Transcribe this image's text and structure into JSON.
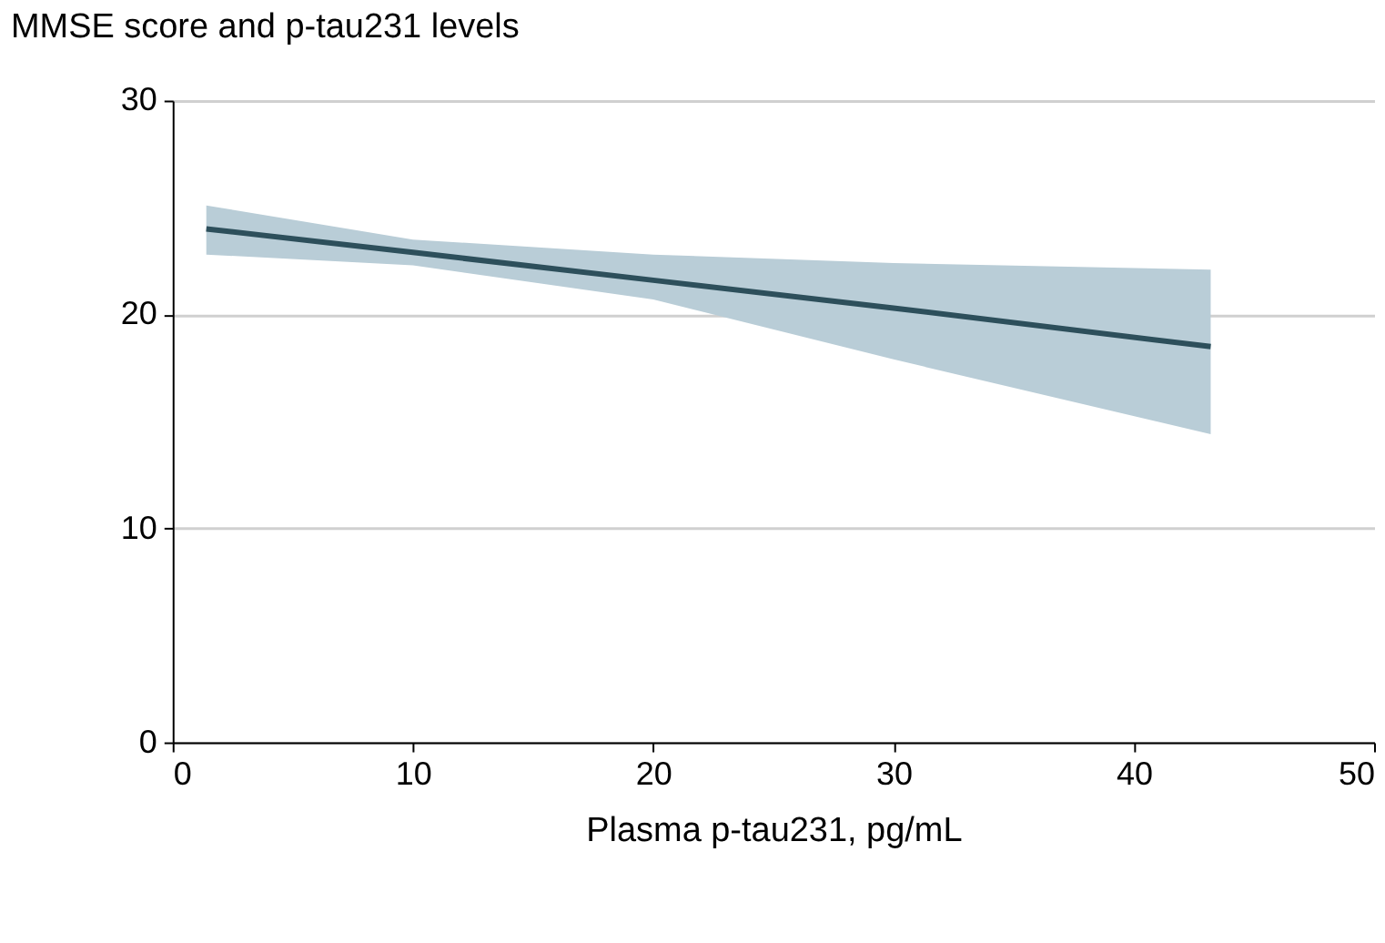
{
  "chart_data": {
    "type": "line",
    "title": "MMSE score and p-tau231 levels",
    "xlabel": "Plasma p-tau231, pg/mL",
    "x": [
      1.4,
      10,
      20,
      30,
      43.2
    ],
    "series": [
      {
        "color": "#2d4f5b",
        "values": [
          24,
          22.9,
          21.6,
          20.3,
          18.5
        ],
        "lower": [
          22.8,
          22.3,
          20.7,
          17.9,
          14.4
        ],
        "upper": [
          25.1,
          23.5,
          22.8,
          22.4,
          22.1
        ]
      }
    ],
    "xlim": [
      0,
      50
    ],
    "xticks": [
      0,
      10,
      20,
      30,
      40,
      50
    ],
    "ylim": [
      0,
      30
    ],
    "yticks": [
      0,
      10,
      20,
      30
    ],
    "grid": "y",
    "line_style": "solid"
  }
}
